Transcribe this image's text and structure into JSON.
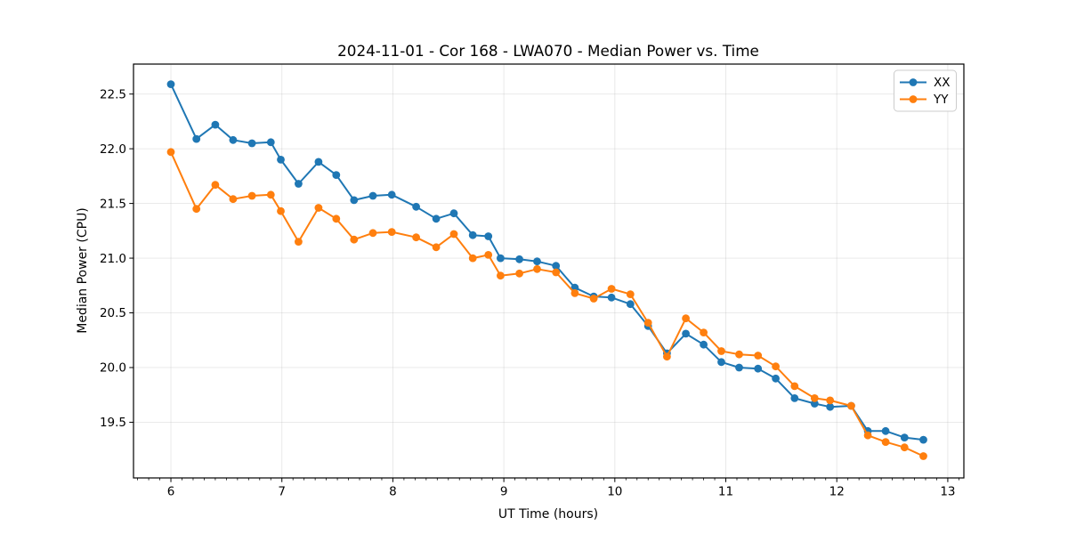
{
  "chart_data": {
    "type": "line",
    "title": "2024-11-01 - Cor 168 - LWA070 - Median Power vs. Time",
    "xlabel": "UT Time (hours)",
    "ylabel": "Median Power (CPU)",
    "xlim": [
      5.663,
      13.145
    ],
    "ylim": [
      18.991,
      22.774
    ],
    "x_ticks": [
      6,
      7,
      8,
      9,
      10,
      11,
      12,
      13
    ],
    "x_minor_tick_step": 0.1,
    "y_ticks": [
      19.5,
      20.0,
      20.5,
      21.0,
      21.5,
      22.0,
      22.5
    ],
    "grid": true,
    "legend_position": "upper right",
    "x": [
      6.0,
      6.23,
      6.4,
      6.56,
      6.73,
      6.9,
      6.99,
      7.15,
      7.33,
      7.49,
      7.65,
      7.82,
      7.99,
      8.21,
      8.39,
      8.55,
      8.72,
      8.86,
      8.97,
      9.14,
      9.3,
      9.47,
      9.64,
      9.81,
      9.97,
      10.14,
      10.3,
      10.47,
      10.64,
      10.8,
      10.96,
      11.12,
      11.29,
      11.45,
      11.62,
      11.8,
      11.94,
      12.13,
      12.28,
      12.44,
      12.61,
      12.78
    ],
    "series": [
      {
        "name": "XX",
        "color": "#1f77b4",
        "values": [
          22.59,
          22.09,
          22.22,
          22.08,
          22.05,
          22.06,
          21.9,
          21.68,
          21.88,
          21.76,
          21.53,
          21.57,
          21.58,
          21.47,
          21.36,
          21.41,
          21.21,
          21.2,
          21.0,
          20.99,
          20.97,
          20.93,
          20.73,
          20.65,
          20.64,
          20.58,
          20.38,
          20.13,
          20.31,
          20.21,
          20.05,
          20.0,
          19.99,
          19.9,
          19.72,
          19.67,
          19.64,
          19.65,
          19.42,
          19.42,
          19.36,
          19.34
        ]
      },
      {
        "name": "YY",
        "color": "#ff7f0e",
        "values": [
          21.97,
          21.45,
          21.67,
          21.54,
          21.57,
          21.58,
          21.43,
          21.15,
          21.46,
          21.36,
          21.17,
          21.23,
          21.24,
          21.19,
          21.1,
          21.22,
          21.0,
          21.03,
          20.84,
          20.86,
          20.9,
          20.87,
          20.68,
          20.63,
          20.72,
          20.67,
          20.41,
          20.1,
          20.45,
          20.32,
          20.15,
          20.12,
          20.11,
          20.01,
          19.83,
          19.72,
          19.7,
          19.65,
          19.38,
          19.32,
          19.27,
          19.19
        ]
      }
    ]
  },
  "legend": {
    "items": [
      {
        "label": "XX",
        "color": "#1f77b4"
      },
      {
        "label": "YY",
        "color": "#ff7f0e"
      }
    ]
  },
  "style_colors": {
    "grid": "#b0b0b0",
    "spine": "#000000",
    "legend_border": "#cccccc",
    "background": "#ffffff"
  }
}
